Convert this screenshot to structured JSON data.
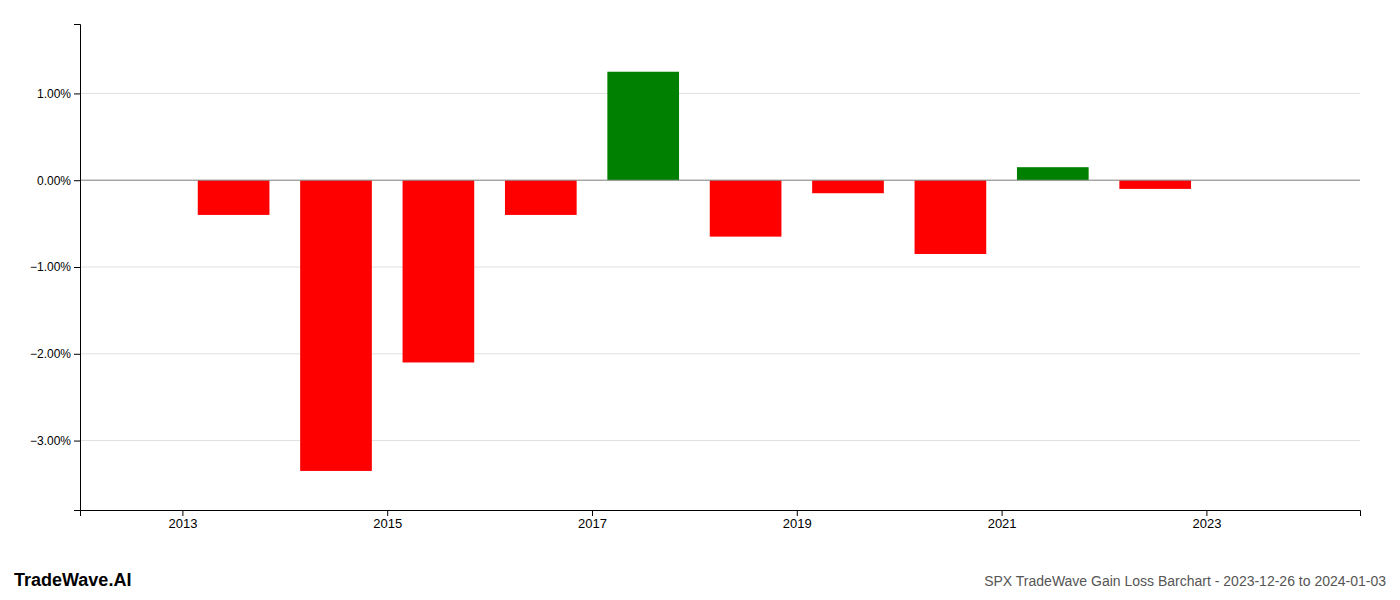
{
  "chart_data": {
    "type": "bar",
    "title": "SPX TradeWave Gain Loss Barchart - 2023-12-26 to 2024-01-03",
    "annotations": [
      "TradeWave.AI"
    ],
    "x": [
      2013.5,
      2014.5,
      2015.5,
      2016.5,
      2017.5,
      2018.5,
      2019.5,
      2020.5,
      2021.5,
      2022.5
    ],
    "values": [
      -0.004,
      -0.0335,
      -0.021,
      -0.004,
      0.0125,
      -0.0065,
      -0.0015,
      -0.0085,
      0.0015,
      -0.001
    ],
    "colors": [
      "red",
      "red",
      "red",
      "red",
      "green",
      "red",
      "red",
      "red",
      "green",
      "red"
    ],
    "xlim": [
      2012.0,
      2024.5
    ],
    "xticks": [
      2013,
      2015,
      2017,
      2019,
      2021,
      2023
    ],
    "ylim": [
      -0.038,
      0.018
    ],
    "yticks": [
      {
        "value": -0.03,
        "label": "−3.00%"
      },
      {
        "value": -0.02,
        "label": "−2.00%"
      },
      {
        "value": -0.01,
        "label": "−1.00%"
      },
      {
        "value": 0,
        "label": "0.00%"
      },
      {
        "value": 0.01,
        "label": "1.00%"
      }
    ],
    "grid": true
  }
}
